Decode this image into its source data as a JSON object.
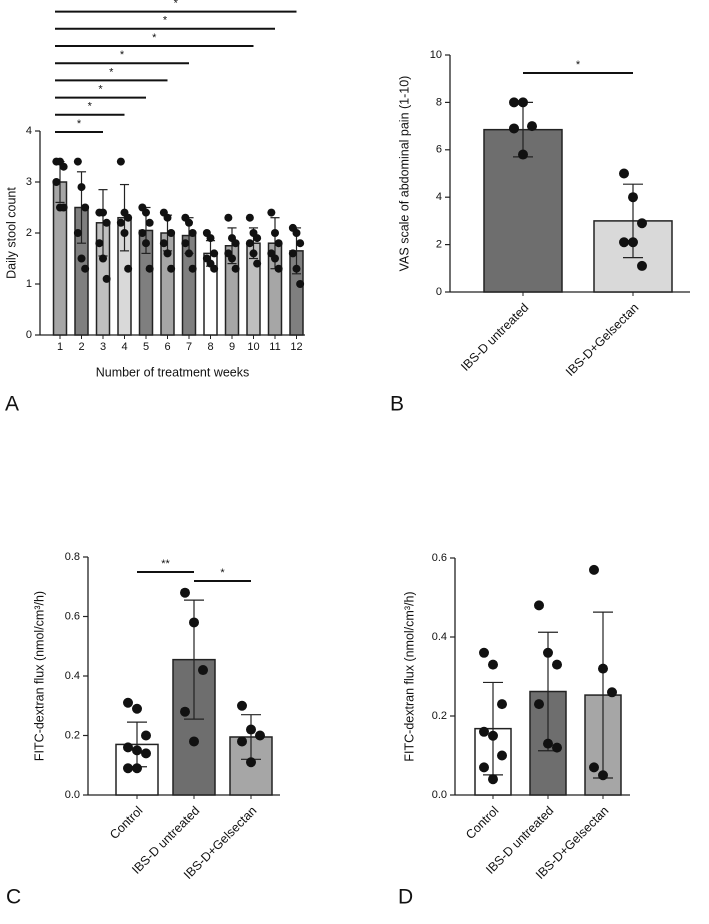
{
  "chart_data": [
    {
      "type": "bar",
      "panel": "A",
      "ylabel": "Daily stool count",
      "xlabel": "Number of treatment weeks",
      "categories": [
        "1",
        "2",
        "3",
        "4",
        "5",
        "6",
        "7",
        "8",
        "9",
        "10",
        "11",
        "12"
      ],
      "values": [
        3.0,
        2.5,
        2.2,
        2.3,
        2.05,
        2.0,
        1.95,
        1.6,
        1.75,
        1.8,
        1.8,
        1.65
      ],
      "errors": [
        0.4,
        0.7,
        0.65,
        0.65,
        0.45,
        0.35,
        0.35,
        0.25,
        0.35,
        0.3,
        0.5,
        0.45
      ],
      "points": [
        [
          3.4,
          3.4,
          3.3,
          3.0,
          2.5,
          2.5
        ],
        [
          3.4,
          2.9,
          2.5,
          2.0,
          1.5,
          1.3
        ],
        [
          2.4,
          2.4,
          2.2,
          1.8,
          1.5,
          1.1
        ],
        [
          3.4,
          2.4,
          2.3,
          2.2,
          2.0,
          1.3
        ],
        [
          2.5,
          2.4,
          2.2,
          2.0,
          1.8,
          1.3
        ],
        [
          2.4,
          2.3,
          2.0,
          1.8,
          1.6,
          1.3
        ],
        [
          2.3,
          2.2,
          2.0,
          1.8,
          1.6,
          1.3
        ],
        [
          2.0,
          1.9,
          1.6,
          1.5,
          1.4,
          1.3
        ],
        [
          2.3,
          1.9,
          1.8,
          1.6,
          1.5,
          1.3
        ],
        [
          2.3,
          2.0,
          1.9,
          1.8,
          1.6,
          1.4
        ],
        [
          2.4,
          2.0,
          1.8,
          1.6,
          1.5,
          1.3
        ],
        [
          2.1,
          2.0,
          1.8,
          1.6,
          1.3,
          1.0
        ]
      ],
      "colors": [
        "#a6a6a6",
        "#7f7f7f",
        "#bfbfbf",
        "#d9d9d9",
        "#7f7f7f",
        "#a6a6a6",
        "#7f7f7f",
        "#ffffff",
        "#a6a6a6",
        "#bfbfbf",
        "#a6a6a6",
        "#7f7f7f"
      ],
      "ylim": [
        0,
        4
      ],
      "yticks": [
        0,
        1,
        2,
        3,
        4
      ],
      "brackets": [
        {
          "from": 0,
          "to": 2,
          "label": "*"
        },
        {
          "from": 0,
          "to": 3,
          "label": "*"
        },
        {
          "from": 0,
          "to": 4,
          "label": "*"
        },
        {
          "from": 0,
          "to": 5,
          "label": "*"
        },
        {
          "from": 0,
          "to": 6,
          "label": "*"
        },
        {
          "from": 0,
          "to": 9,
          "label": "*"
        },
        {
          "from": 0,
          "to": 10,
          "label": "*"
        },
        {
          "from": 0,
          "to": 11,
          "label": "*"
        }
      ]
    },
    {
      "type": "bar",
      "panel": "B",
      "ylabel": "VAS scale of abdominal pain (1-10)",
      "categories": [
        "IBS-D untreated",
        "IBS-D+Gelsectan"
      ],
      "values": [
        6.85,
        3.0
      ],
      "errors": [
        1.15,
        1.55
      ],
      "points": [
        [
          8.0,
          8.0,
          7.0,
          6.9,
          5.8
        ],
        [
          5.0,
          4.0,
          2.9,
          2.1,
          2.1,
          1.1
        ]
      ],
      "colors": [
        "#6e6e6e",
        "#d9d9d9"
      ],
      "ylim": [
        0,
        10
      ],
      "yticks": [
        0,
        2,
        4,
        6,
        8,
        10
      ],
      "brackets": [
        {
          "from": 0,
          "to": 1,
          "label": "*"
        }
      ]
    },
    {
      "type": "bar",
      "panel": "C",
      "ylabel": "FITC-dextran flux (nmol/cm³/h)",
      "categories": [
        "Control",
        "IBS-D untreated",
        "IBS-D+Gelsectan"
      ],
      "values": [
        0.17,
        0.455,
        0.195
      ],
      "errors": [
        0.075,
        0.2,
        0.075
      ],
      "points": [
        [
          0.31,
          0.29,
          0.2,
          0.16,
          0.15,
          0.14,
          0.09,
          0.09
        ],
        [
          0.68,
          0.58,
          0.42,
          0.28,
          0.18
        ],
        [
          0.3,
          0.22,
          0.2,
          0.18,
          0.11
        ]
      ],
      "colors": [
        "#ffffff",
        "#6e6e6e",
        "#a6a6a6"
      ],
      "ylim": [
        0,
        0.8
      ],
      "yticks": [
        {
          "value": 0,
          "label": "0.0"
        },
        0.2,
        0.4,
        0.6,
        0.8
      ],
      "brackets": [
        {
          "from": 0,
          "to": 1,
          "label": "**"
        },
        {
          "from": 1,
          "to": 2,
          "label": "*"
        }
      ]
    },
    {
      "type": "bar",
      "panel": "D",
      "ylabel": "FITC-dextran flux (nmol/cm³/h)",
      "categories": [
        "Control",
        "IBS-D untreated",
        "IBS-D+Gelsectan"
      ],
      "values": [
        0.168,
        0.262,
        0.253
      ],
      "errors": [
        0.117,
        0.15,
        0.21
      ],
      "points": [
        [
          0.36,
          0.33,
          0.23,
          0.16,
          0.15,
          0.1,
          0.07,
          0.04
        ],
        [
          0.48,
          0.36,
          0.33,
          0.23,
          0.13,
          0.12
        ],
        [
          0.57,
          0.32,
          0.26,
          0.07,
          0.05
        ]
      ],
      "colors": [
        "#ffffff",
        "#6e6e6e",
        "#a6a6a6"
      ],
      "ylim": [
        0,
        0.6
      ],
      "yticks": [
        {
          "value": 0,
          "label": "0.0"
        },
        0.2,
        0.4,
        0.6
      ]
    }
  ]
}
